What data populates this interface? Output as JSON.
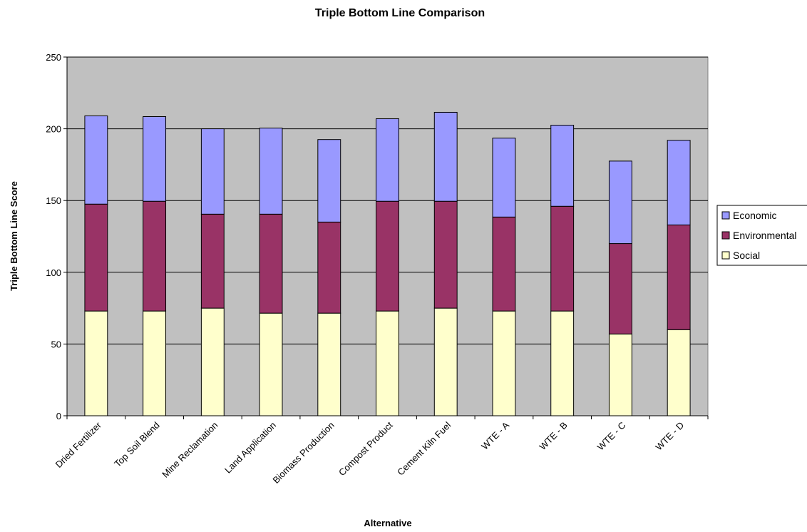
{
  "chart_data": {
    "type": "bar",
    "stacked": true,
    "title": "Triple Bottom Line Comparison",
    "xlabel": "Alternative",
    "ylabel": "Triple Bottom Line Score",
    "ylim": [
      0,
      250
    ],
    "yticks": [
      "0",
      "50",
      "100",
      "150",
      "200",
      "250"
    ],
    "grid": true,
    "legend_position": "right",
    "plot_background": "#C0C0C0",
    "categories": [
      "Dried Fertilizer",
      "Top Soil Blend",
      "Mine Reclamation",
      "Land Application",
      "Biomass Production",
      "Compost Product",
      "Cement Kiln Fuel",
      "WTE - A",
      "WTE - B",
      "WTE - C",
      "WTE - D"
    ],
    "series": [
      {
        "name": "Social",
        "color": "#FFFFCC",
        "values": [
          73,
          73,
          75,
          71.5,
          71.5,
          73,
          75,
          73,
          73,
          57,
          60
        ]
      },
      {
        "name": "Environmental",
        "color": "#993366",
        "values": [
          74.5,
          76.5,
          65.5,
          69,
          63.5,
          76.5,
          74.5,
          65.5,
          73,
          63,
          73
        ]
      },
      {
        "name": "Economic",
        "color": "#9999FF",
        "values": [
          61.5,
          59,
          59.5,
          60,
          57.5,
          57.5,
          62,
          55,
          56.5,
          57.5,
          59
        ]
      }
    ],
    "legend_order": [
      "Economic",
      "Environmental",
      "Social"
    ]
  }
}
